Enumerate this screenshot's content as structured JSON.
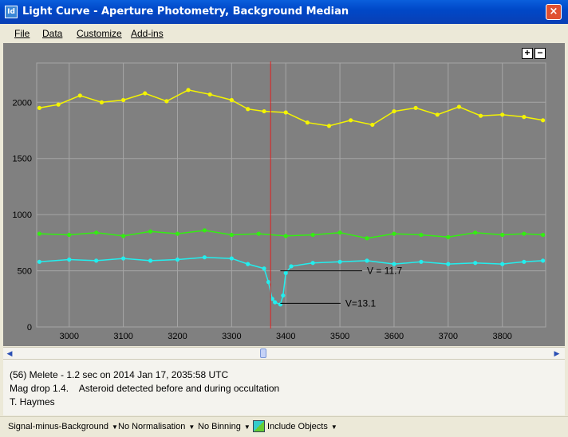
{
  "window": {
    "title": "Light Curve - Aperture Photometry, Background Median",
    "icon": "app-icon",
    "close": "×"
  },
  "menu": {
    "items": [
      "File",
      "Data",
      "Customize",
      "Add-ins"
    ]
  },
  "zoom": {
    "plus": "+",
    "minus": "−"
  },
  "info": {
    "line1": "(56) Melete - 1.2 sec on 2014 Jan 17, 2035:58 UTC",
    "line2": "Mag drop 1.4.    Asteroid detected before and during occultation",
    "line3": "T. Haymes"
  },
  "status": {
    "signal": "Signal-minus-Background",
    "normalisation": "No Normalisation",
    "binning": "No Binning",
    "include": "Include Objects"
  },
  "chart_data": {
    "type": "line",
    "x_range": [
      2940,
      3880
    ],
    "ylim": [
      0,
      2350
    ],
    "x_ticks": [
      3000,
      3100,
      3200,
      3300,
      3400,
      3500,
      3600,
      3700,
      3800
    ],
    "y_ticks": [
      0,
      500,
      1000,
      1500,
      2000
    ],
    "grid": true,
    "cursor_x": 3372,
    "colors": {
      "background": "#808080",
      "grid": "#a6a6a6",
      "cursor": "#e02020"
    },
    "series": [
      {
        "color": "#f4f400",
        "x": [
          2945,
          2980,
          3020,
          3060,
          3100,
          3140,
          3180,
          3220,
          3260,
          3300,
          3330,
          3360,
          3400,
          3440,
          3480,
          3520,
          3560,
          3600,
          3640,
          3680,
          3720,
          3760,
          3800,
          3840,
          3875
        ],
        "y": [
          1950,
          1980,
          2060,
          2000,
          2020,
          2080,
          2010,
          2110,
          2070,
          2020,
          1940,
          1920,
          1910,
          1820,
          1790,
          1840,
          1800,
          1920,
          1950,
          1890,
          1960,
          1880,
          1890,
          1870,
          1840
        ]
      },
      {
        "color": "#33ee11",
        "x": [
          2945,
          3000,
          3050,
          3100,
          3150,
          3200,
          3250,
          3300,
          3350,
          3400,
          3450,
          3500,
          3550,
          3600,
          3650,
          3700,
          3750,
          3800,
          3840,
          3875
        ],
        "y": [
          830,
          820,
          840,
          810,
          850,
          830,
          860,
          820,
          830,
          810,
          820,
          840,
          790,
          830,
          820,
          800,
          840,
          820,
          830,
          820
        ]
      },
      {
        "color": "#22eeee",
        "x": [
          2945,
          3000,
          3050,
          3100,
          3150,
          3200,
          3250,
          3300,
          3330,
          3360,
          3368,
          3375,
          3380,
          3390,
          3395,
          3400,
          3410,
          3450,
          3500,
          3550,
          3600,
          3650,
          3700,
          3750,
          3800,
          3840,
          3875
        ],
        "y": [
          580,
          600,
          590,
          610,
          590,
          600,
          620,
          610,
          560,
          520,
          400,
          250,
          220,
          200,
          280,
          480,
          540,
          570,
          580,
          590,
          560,
          580,
          560,
          570,
          560,
          580,
          590
        ]
      }
    ],
    "annotations": [
      {
        "text": "V = 11.7",
        "x": 3550,
        "y": 500
      },
      {
        "text": "V=13.1",
        "x": 3510,
        "y": 210
      }
    ]
  }
}
